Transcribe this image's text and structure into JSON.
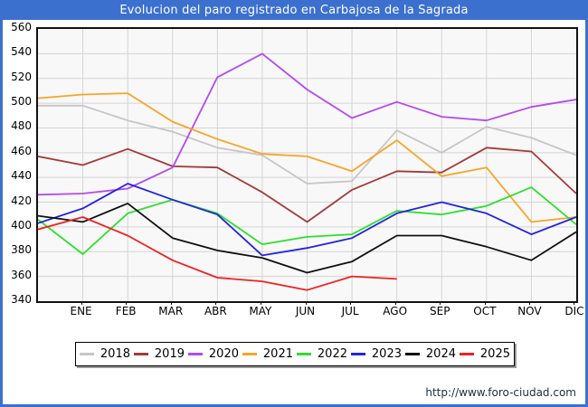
{
  "title": "Evolucion del paro registrado en Carbajosa de la Sagrada",
  "footer": {
    "url": "http://www.foro-ciudad.com"
  },
  "colors": {
    "frame_blue": "#3c70cf",
    "plot_background": "#f8f8f8",
    "gridline": "#d4d4d4",
    "axis": "#111111",
    "footer_text": "#1f2d3d"
  },
  "chart_data": {
    "type": "line",
    "title": "Evolucion del paro registrado en Carbajosa de la Sagrada",
    "categories": [
      "ENE",
      "FEB",
      "MAR",
      "ABR",
      "MAY",
      "JUN",
      "JUL",
      "AGO",
      "SEP",
      "OCT",
      "NOV",
      "DIC"
    ],
    "ylim": [
      340,
      560
    ],
    "y_ticks": [
      560,
      540,
      520,
      500,
      480,
      460,
      440,
      420,
      400,
      380,
      360,
      340
    ],
    "grid": true,
    "legend_position": "bottom",
    "note_start": "each line begins at the plot left edge with the 'start' value, then has one vertex per month",
    "series": [
      {
        "name": "2018",
        "color": "#c6c6c6",
        "start": 498,
        "values": [
          498,
          486,
          477,
          464,
          458,
          435,
          437,
          478,
          460,
          481,
          472,
          458
        ]
      },
      {
        "name": "2019",
        "color": "#a33a3a",
        "start": 457,
        "values": [
          450,
          463,
          449,
          448,
          428,
          404,
          430,
          445,
          444,
          464,
          461,
          427
        ]
      },
      {
        "name": "2020",
        "color": "#b34af2",
        "start": 426,
        "values": [
          427,
          431,
          448,
          521,
          540,
          511,
          488,
          501,
          489,
          486,
          497,
          503
        ]
      },
      {
        "name": "2021",
        "color": "#f9a424",
        "start": 504,
        "values": [
          507,
          508,
          485,
          471,
          459,
          457,
          445,
          470,
          441,
          448,
          404,
          408
        ]
      },
      {
        "name": "2022",
        "color": "#2ce02c",
        "start": 406,
        "values": [
          378,
          411,
          422,
          411,
          386,
          392,
          394,
          413,
          410,
          417,
          432,
          402
        ]
      },
      {
        "name": "2023",
        "color": "#2424dd",
        "start": 403,
        "values": [
          415,
          435,
          422,
          410,
          377,
          383,
          391,
          411,
          420,
          411,
          394,
          408
        ]
      },
      {
        "name": "2024",
        "color": "#111111",
        "start": 409,
        "values": [
          404,
          419,
          391,
          381,
          375,
          363,
          372,
          393,
          393,
          384,
          373,
          396
        ]
      },
      {
        "name": "2025",
        "color": "#ee2222",
        "start": 398,
        "values": [
          408,
          393,
          373,
          359,
          356,
          349,
          360,
          358,
          null,
          null,
          null,
          null
        ]
      }
    ]
  }
}
